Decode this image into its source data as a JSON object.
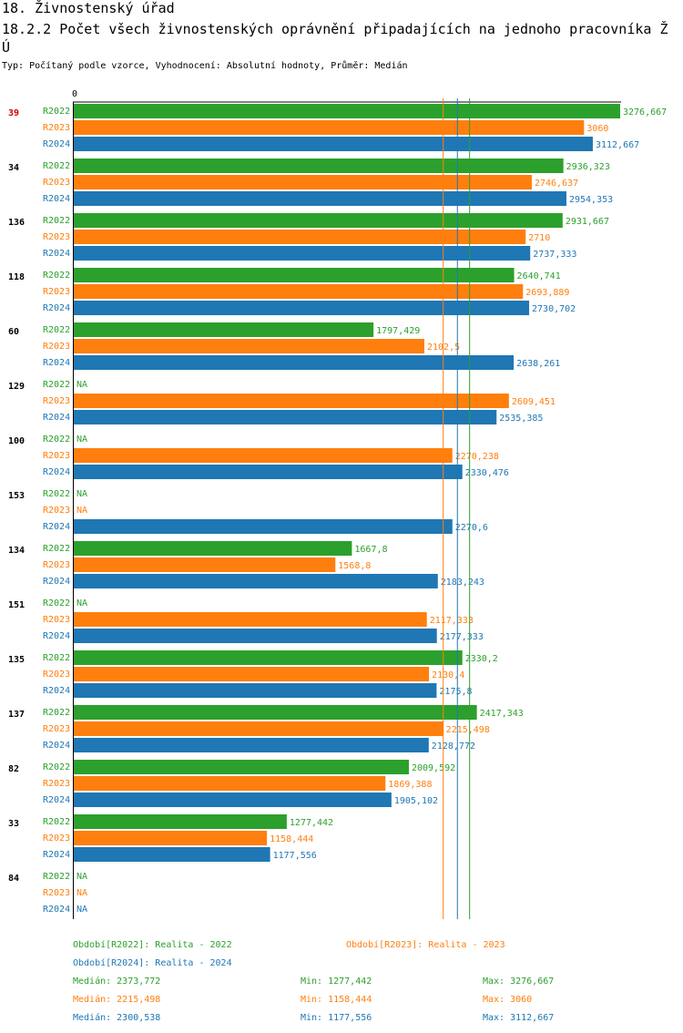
{
  "title1": "18. Živnostenský úřad",
  "title2": "18.2.2 Počet všech živnostenských oprávnění připadajících na jednoho pracovníka ŽÚ",
  "subtitle": "Typ: Počítaný podle vzorce, Vyhodnocení: Absolutní hodnoty, Průměr: Medián",
  "colors": {
    "R2022": "#2ca02c",
    "R2023": "#ff7f0e",
    "R2024": "#1f77b4",
    "highlight": "#cc0000"
  },
  "chart_data": {
    "type": "bar",
    "orientation": "horizontal",
    "axis_zero_label": "0",
    "xlim": [
      0,
      3276.667
    ],
    "series_names": [
      "R2022",
      "R2023",
      "R2024"
    ],
    "na_label": "NA",
    "groups": [
      {
        "label": "39",
        "highlight": true,
        "values": [
          3276.667,
          3060,
          3112.667
        ],
        "labels": [
          "3276,667",
          "3060",
          "3112,667"
        ]
      },
      {
        "label": "34",
        "values": [
          2936.323,
          2746.637,
          2954.353
        ],
        "labels": [
          "2936,323",
          "2746,637",
          "2954,353"
        ]
      },
      {
        "label": "136",
        "values": [
          2931.667,
          2710,
          2737.333
        ],
        "labels": [
          "2931,667",
          "2710",
          "2737,333"
        ]
      },
      {
        "label": "118",
        "values": [
          2640.741,
          2693.889,
          2730.702
        ],
        "labels": [
          "2640,741",
          "2693,889",
          "2730,702"
        ]
      },
      {
        "label": "60",
        "values": [
          1797.429,
          2102.5,
          2638.261
        ],
        "labels": [
          "1797,429",
          "2102,5",
          "2638,261"
        ]
      },
      {
        "label": "129",
        "values": [
          null,
          2609.451,
          2535.385
        ],
        "labels": [
          "NA",
          "2609,451",
          "2535,385"
        ]
      },
      {
        "label": "100",
        "values": [
          null,
          2270.238,
          2330.476
        ],
        "labels": [
          "NA",
          "2270,238",
          "2330,476"
        ]
      },
      {
        "label": "153",
        "values": [
          null,
          null,
          2270.6
        ],
        "labels": [
          "NA",
          "NA",
          "2270,6"
        ]
      },
      {
        "label": "134",
        "values": [
          1667.8,
          1568.8,
          2183.243
        ],
        "labels": [
          "1667,8",
          "1568,8",
          "2183,243"
        ]
      },
      {
        "label": "151",
        "values": [
          null,
          2117.333,
          2177.333
        ],
        "labels": [
          "NA",
          "2117,333",
          "2177,333"
        ]
      },
      {
        "label": "135",
        "values": [
          2330.2,
          2130.4,
          2175.8
        ],
        "labels": [
          "2330,2",
          "2130,4",
          "2175,8"
        ]
      },
      {
        "label": "137",
        "values": [
          2417.343,
          2215.498,
          2128.772
        ],
        "labels": [
          "2417,343",
          "2215,498",
          "2128,772"
        ]
      },
      {
        "label": "82",
        "values": [
          2009.592,
          1869.388,
          1905.102
        ],
        "labels": [
          "2009,592",
          "1869,388",
          "1905,102"
        ]
      },
      {
        "label": "33",
        "values": [
          1277.442,
          1158.444,
          1177.556
        ],
        "labels": [
          "1277,442",
          "1158,444",
          "1177,556"
        ]
      },
      {
        "label": "84",
        "values": [
          null,
          null,
          null
        ],
        "labels": [
          "NA",
          "NA",
          "NA"
        ]
      }
    ],
    "median_lines": {
      "R2022": 2373.772,
      "R2023": 2215.498,
      "R2024": 2300.538
    }
  },
  "legend": {
    "R2022": "Období[R2022]: Realita - 2022",
    "R2023": "Období[R2023]: Realita - 2023",
    "R2024": "Období[R2024]: Realita - 2024"
  },
  "stats": [
    {
      "series": "R2022",
      "median": "Medián: 2373,772",
      "min": "Min: 1277,442",
      "max": "Max: 3276,667"
    },
    {
      "series": "R2023",
      "median": "Medián: 2215,498",
      "min": "Min: 1158,444",
      "max": "Max: 3060"
    },
    {
      "series": "R2024",
      "median": "Medián: 2300,538",
      "min": "Min: 1177,556",
      "max": "Max: 3112,667"
    }
  ]
}
